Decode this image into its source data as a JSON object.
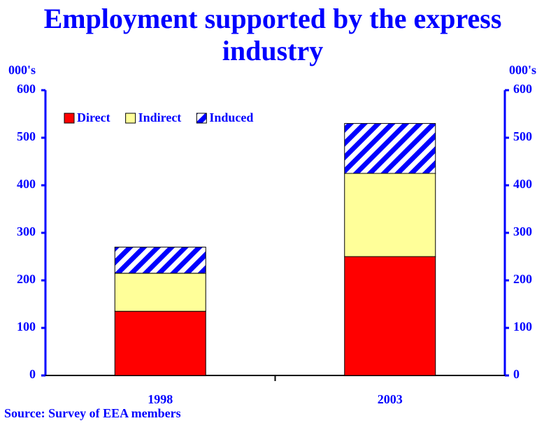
{
  "chart_data": {
    "type": "stacked_bar",
    "title": "Employment supported by the express industry",
    "ylabel": "000's",
    "y2label": "000's",
    "source": "Source: Survey of EEA members",
    "categories": [
      "1998",
      "2003"
    ],
    "series": [
      {
        "name": "Direct",
        "color": "#ff0000",
        "values": [
          135,
          250
        ]
      },
      {
        "name": "Indirect",
        "color": "#ffff99",
        "values": [
          80,
          175
        ]
      },
      {
        "name": "Induced",
        "color": "#0000ff",
        "hatch": "diagonal",
        "values": [
          55,
          105
        ]
      }
    ],
    "ylim": [
      0,
      600
    ],
    "yticks": [
      0,
      100,
      200,
      300,
      400,
      500,
      600
    ],
    "y2lim": [
      0,
      600
    ],
    "y2ticks": [
      0,
      100,
      200,
      300,
      400,
      500,
      600
    ],
    "legend": "upper left"
  }
}
